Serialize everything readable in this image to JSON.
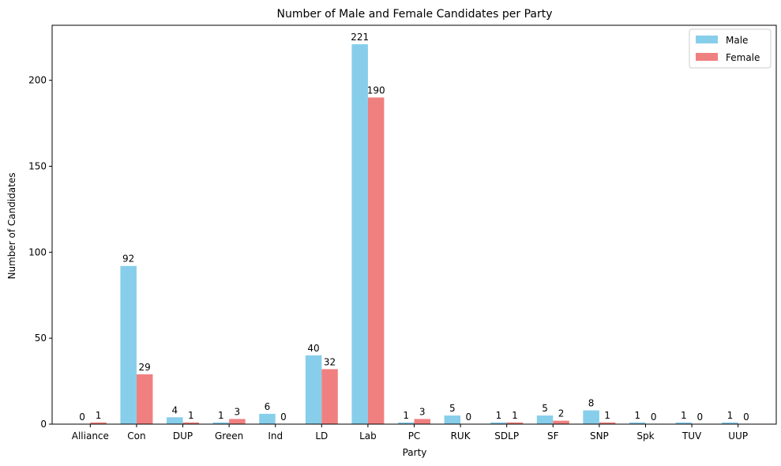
{
  "chart_data": {
    "type": "bar",
    "title": "Number of Male and Female Candidates per Party",
    "xlabel": "Party",
    "ylabel": "Number of Candidates",
    "categories": [
      "Alliance",
      "Con",
      "DUP",
      "Green",
      "Ind",
      "LD",
      "Lab",
      "PC",
      "RUK",
      "SDLP",
      "SF",
      "SNP",
      "Spk",
      "TUV",
      "UUP"
    ],
    "series": [
      {
        "name": "Male",
        "color": "#87ceeb",
        "values": [
          0,
          92,
          4,
          1,
          6,
          40,
          221,
          1,
          5,
          1,
          5,
          8,
          1,
          1,
          1
        ]
      },
      {
        "name": "Female",
        "color": "#f08080",
        "values": [
          1,
          29,
          1,
          3,
          0,
          32,
          190,
          3,
          0,
          1,
          2,
          1,
          0,
          0,
          0
        ]
      }
    ],
    "ylim": [
      0,
      232
    ],
    "yticks": [
      0,
      50,
      100,
      150,
      200
    ],
    "grid": false,
    "legend_position": "top-right"
  }
}
